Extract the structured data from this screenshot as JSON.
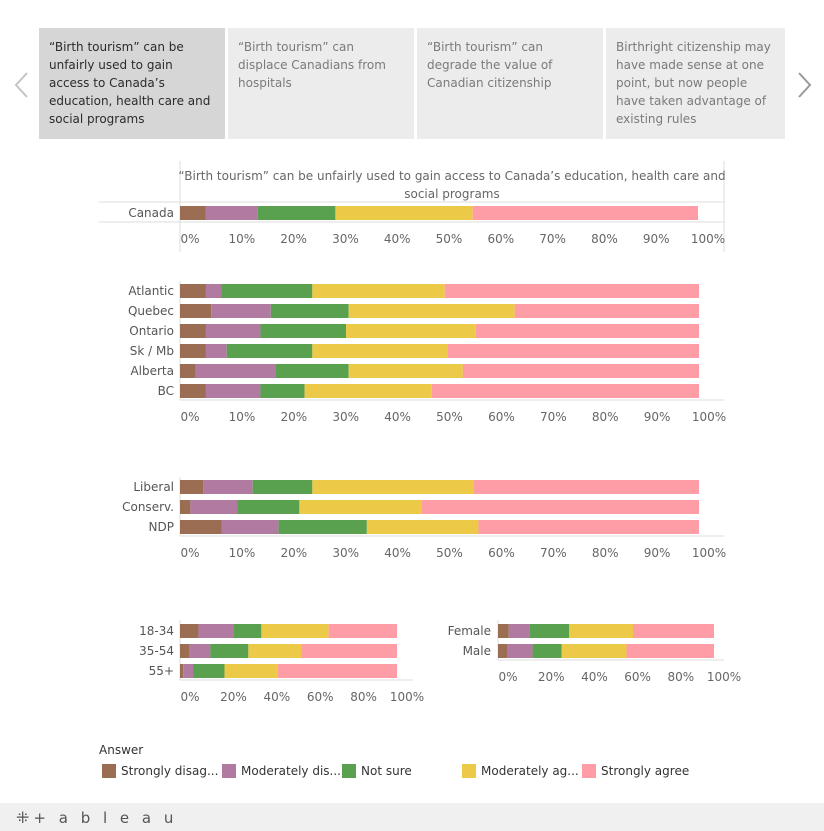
{
  "nav": {
    "tabs": [
      "“Birth tourism” can be unfairly used to gain access to Canada’s education, health care and social programs",
      "“Birth tourism” can displace Canadians from hospitals",
      "“Birth tourism” can degrade the value of Canadian citizenship",
      "Birthright citizenship may have made sense at one point, but now people have taken advantage of existing rules"
    ],
    "active_index": 0
  },
  "legend": {
    "title": "Answer",
    "items": [
      {
        "label": "Strongly disag...",
        "color": "#9b6e54"
      },
      {
        "label": "Moderately dis...",
        "color": "#b07aa1"
      },
      {
        "label": "Not sure",
        "color": "#59a14f"
      },
      {
        "label": "Moderately ag...",
        "color": "#edc948"
      },
      {
        "label": "Strongly agree",
        "color": "#ff9da7"
      }
    ]
  },
  "footer": {
    "brand": "+ a b l e a u"
  },
  "chart_data": [
    {
      "type": "bar",
      "orientation": "horizontal-stacked-100",
      "title": "“Birth tourism” can be unfairly used to gain access to Canada’s education, health care and social programs",
      "categories": [
        "Canada"
      ],
      "series": [
        {
          "name": "Strongly disag...",
          "values": [
            5
          ]
        },
        {
          "name": "Moderately dis...",
          "values": [
            10
          ]
        },
        {
          "name": "Not sure",
          "values": [
            15
          ]
        },
        {
          "name": "Moderately ag...",
          "values": [
            26.5
          ]
        },
        {
          "name": "Strongly agree",
          "values": [
            43.5
          ]
        }
      ],
      "ticks": [
        "0%",
        "10%",
        "20%",
        "30%",
        "40%",
        "50%",
        "60%",
        "70%",
        "80%",
        "90%",
        "100%"
      ]
    },
    {
      "type": "bar",
      "orientation": "horizontal-stacked-100",
      "categories": [
        "Atlantic",
        "Quebec",
        "Ontario",
        "Sk / Mb",
        "Alberta",
        "BC"
      ],
      "series": [
        {
          "name": "Strongly disag...",
          "values": [
            5,
            6,
            5,
            5,
            3,
            5
          ]
        },
        {
          "name": "Moderately dis...",
          "values": [
            3,
            11.5,
            10.5,
            4,
            15.5,
            10.5
          ]
        },
        {
          "name": "Not sure",
          "values": [
            17.5,
            15,
            16.5,
            16.5,
            14,
            8.5
          ]
        },
        {
          "name": "Moderately ag...",
          "values": [
            25.5,
            32,
            25,
            26,
            22,
            24.5
          ]
        },
        {
          "name": "Strongly agree",
          "values": [
            49,
            35.5,
            43,
            48.5,
            45.5,
            51.5
          ]
        }
      ],
      "ticks": [
        "0%",
        "10%",
        "20%",
        "30%",
        "40%",
        "50%",
        "60%",
        "70%",
        "80%",
        "90%",
        "100%"
      ]
    },
    {
      "type": "bar",
      "orientation": "horizontal-stacked-100",
      "categories": [
        "Liberal",
        "Conserv.",
        "NDP"
      ],
      "series": [
        {
          "name": "Strongly disag...",
          "values": [
            4.5,
            2,
            8
          ]
        },
        {
          "name": "Moderately dis...",
          "values": [
            9.5,
            9,
            11
          ]
        },
        {
          "name": "Not sure",
          "values": [
            11.5,
            12,
            17
          ]
        },
        {
          "name": "Moderately ag...",
          "values": [
            31,
            23.5,
            21.5
          ]
        },
        {
          "name": "Strongly agree",
          "values": [
            43.5,
            53.5,
            42.5
          ]
        }
      ],
      "ticks": [
        "0%",
        "10%",
        "20%",
        "30%",
        "40%",
        "50%",
        "60%",
        "70%",
        "80%",
        "90%",
        "100%"
      ]
    },
    {
      "type": "bar",
      "orientation": "horizontal-stacked-100",
      "categories": [
        "18-34",
        "35-54",
        "55+"
      ],
      "series": [
        {
          "name": "Strongly disag...",
          "values": [
            8.5,
            4.5,
            1.5
          ]
        },
        {
          "name": "Moderately dis...",
          "values": [
            16,
            9.5,
            4.5
          ]
        },
        {
          "name": "Not sure",
          "values": [
            13,
            17.5,
            14.5
          ]
        },
        {
          "name": "Moderately ag...",
          "values": [
            31,
            24.5,
            24.5
          ]
        },
        {
          "name": "Strongly agree",
          "values": [
            31.5,
            44,
            55
          ]
        }
      ],
      "ticks": [
        "0%",
        "20%",
        "40%",
        "60%",
        "80%",
        "100%"
      ]
    },
    {
      "type": "bar",
      "orientation": "horizontal-stacked-100",
      "categories": [
        "Female",
        "Male"
      ],
      "series": [
        {
          "name": "Strongly disag...",
          "values": [
            5,
            4.5
          ]
        },
        {
          "name": "Moderately dis...",
          "values": [
            9.5,
            11.5
          ]
        },
        {
          "name": "Not sure",
          "values": [
            18.5,
            13.5
          ]
        },
        {
          "name": "Moderately ag...",
          "values": [
            29.5,
            30
          ]
        },
        {
          "name": "Strongly agree",
          "values": [
            37.5,
            40.5
          ]
        }
      ],
      "ticks": [
        "0%",
        "20%",
        "40%",
        "60%",
        "80%",
        "100%"
      ]
    }
  ]
}
